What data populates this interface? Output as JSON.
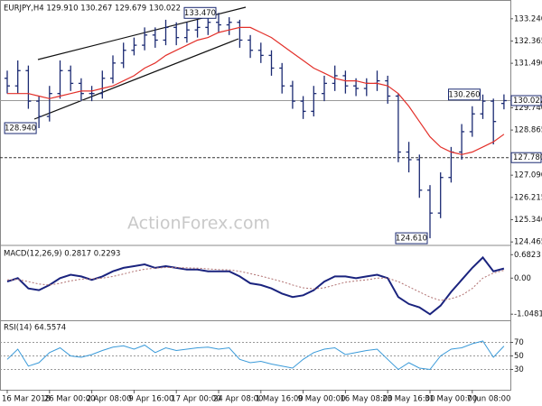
{
  "chart_data": [
    {
      "type": "ohlc",
      "title": "EURJPY,H4  129.910 130.267 129.679 130.022",
      "watermark": "ActionForex.com",
      "color": "#1b2a72",
      "categories": [
        "16 Mar 2018",
        null,
        null,
        null,
        "26 Mar 00:00",
        null,
        null,
        null,
        "2 Apr 08:00",
        null,
        null,
        null,
        "9 Apr 16:00",
        null,
        null,
        null,
        "17 Apr 00:00",
        null,
        null,
        null,
        "24 Apr 08:00",
        null,
        null,
        null,
        "1 May 16:00",
        null,
        null,
        null,
        "9 May 00:00",
        null,
        null,
        null,
        "16 May 08:00",
        null,
        null,
        null,
        "23 May 16:00",
        null,
        null,
        null,
        "31 May 00:00",
        null,
        null,
        null,
        "7 Jun 08:00",
        null,
        null,
        null
      ],
      "open": [
        130.9,
        130.6,
        131.2,
        130.0,
        129.4,
        130.3,
        131.2,
        130.7,
        130.3,
        130.3,
        130.9,
        131.5,
        132.0,
        132.2,
        132.6,
        132.4,
        132.9,
        132.5,
        132.8,
        132.9,
        133.1,
        133.0,
        133.1,
        132.4,
        132.0,
        131.8,
        131.3,
        130.6,
        130.0,
        129.6,
        130.3,
        130.7,
        131.0,
        130.6,
        130.5,
        130.7,
        130.8,
        130.2,
        128.0,
        127.7,
        126.5,
        125.6,
        127.0,
        128.0,
        128.8,
        129.5,
        130.0,
        129.91
      ],
      "high": [
        131.2,
        131.6,
        131.4,
        130.2,
        130.6,
        131.6,
        131.4,
        130.9,
        130.6,
        131.2,
        131.8,
        132.3,
        132.5,
        132.9,
        132.9,
        133.2,
        133.1,
        133.1,
        133.2,
        133.3,
        133.47,
        133.3,
        133.2,
        132.6,
        132.3,
        132.0,
        131.5,
        130.8,
        130.2,
        130.6,
        131.0,
        131.4,
        131.2,
        130.9,
        130.9,
        131.2,
        131.0,
        130.3,
        128.4,
        127.9,
        126.7,
        127.2,
        128.2,
        129.1,
        129.8,
        130.26,
        130.1,
        130.267
      ],
      "low": [
        130.3,
        130.3,
        129.7,
        128.94,
        129.2,
        130.1,
        130.4,
        130.0,
        130.0,
        130.1,
        130.7,
        131.3,
        131.8,
        132.0,
        132.1,
        132.2,
        132.2,
        132.3,
        132.5,
        132.6,
        132.7,
        132.6,
        132.1,
        131.7,
        131.5,
        131.0,
        130.3,
        129.7,
        129.3,
        129.4,
        130.0,
        130.4,
        130.3,
        130.2,
        130.2,
        130.4,
        129.9,
        127.6,
        127.2,
        126.2,
        124.61,
        125.4,
        126.8,
        127.7,
        128.6,
        129.3,
        128.3,
        129.679
      ],
      "close": [
        130.6,
        131.2,
        130.0,
        129.4,
        130.3,
        131.2,
        130.7,
        130.3,
        130.3,
        130.9,
        131.5,
        132.0,
        132.2,
        132.6,
        132.4,
        132.9,
        132.5,
        132.8,
        132.9,
        133.1,
        133.0,
        133.1,
        132.4,
        132.0,
        131.8,
        131.3,
        130.6,
        130.0,
        129.6,
        130.3,
        130.7,
        131.0,
        130.6,
        130.5,
        130.7,
        130.8,
        130.2,
        128.0,
        127.7,
        126.5,
        125.6,
        127.0,
        128.0,
        128.8,
        129.5,
        130.0,
        129.2,
        130.022
      ],
      "ma_color": "#e3302a",
      "ma_values": [
        130.3,
        130.3,
        130.3,
        130.2,
        130.1,
        130.2,
        130.3,
        130.4,
        130.4,
        130.5,
        130.6,
        130.8,
        131.0,
        131.3,
        131.5,
        131.8,
        132.0,
        132.2,
        132.4,
        132.5,
        132.7,
        132.8,
        132.9,
        132.9,
        132.7,
        132.5,
        132.2,
        131.9,
        131.6,
        131.3,
        131.1,
        130.9,
        130.8,
        130.8,
        130.7,
        130.7,
        130.6,
        130.3,
        129.8,
        129.2,
        128.6,
        128.2,
        128.0,
        127.9,
        128.0,
        128.2,
        128.4,
        128.7
      ],
      "ylim": [
        124.4,
        133.8
      ],
      "yticks": [
        {
          "value": 133.24,
          "label": "133.240"
        },
        {
          "value": 132.365,
          "label": "132.365"
        },
        {
          "value": 131.49,
          "label": "131.490"
        },
        {
          "value": 129.74,
          "label": "129.740"
        },
        {
          "value": 128.865,
          "label": "128.865"
        },
        {
          "value": 127.09,
          "label": "127.090"
        },
        {
          "value": 126.215,
          "label": "126.215"
        },
        {
          "value": 125.34,
          "label": "125.340"
        },
        {
          "value": 124.465,
          "label": "124.465"
        }
      ],
      "price_line": {
        "value": 130.022,
        "label": "130.022"
      },
      "level_line": {
        "value": 127.78,
        "label": "127.780"
      },
      "annotations": [
        {
          "value": 133.47,
          "label": "133.470"
        },
        {
          "value": 128.94,
          "label": "128.940"
        },
        {
          "value": 130.26,
          "label": "130.260"
        },
        {
          "value": 124.61,
          "label": "124.610"
        }
      ]
    },
    {
      "type": "line",
      "title": "MACD(12,26,9) 0.2817 0.2293",
      "series": [
        {
          "color": "#1a237e",
          "values": [
            -0.1,
            0.0,
            -0.3,
            -0.35,
            -0.2,
            0.0,
            0.1,
            0.05,
            -0.05,
            0.05,
            0.2,
            0.3,
            0.35,
            0.4,
            0.3,
            0.35,
            0.3,
            0.25,
            0.25,
            0.2,
            0.2,
            0.2,
            0.05,
            -0.15,
            -0.2,
            -0.3,
            -0.45,
            -0.55,
            -0.5,
            -0.35,
            -0.1,
            0.05,
            0.05,
            0.0,
            0.05,
            0.1,
            0.0,
            -0.55,
            -0.75,
            -0.85,
            -1.05,
            -0.8,
            -0.4,
            -0.05,
            0.3,
            0.6,
            0.2,
            0.2817
          ]
        },
        {
          "color": "#b07070",
          "values": [
            -0.05,
            -0.04,
            -0.1,
            -0.17,
            -0.2,
            -0.15,
            -0.08,
            -0.03,
            -0.02,
            0.0,
            0.05,
            0.12,
            0.2,
            0.26,
            0.29,
            0.31,
            0.31,
            0.3,
            0.29,
            0.27,
            0.25,
            0.24,
            0.2,
            0.13,
            0.06,
            -0.02,
            -0.1,
            -0.2,
            -0.28,
            -0.31,
            -0.28,
            -0.2,
            -0.12,
            -0.08,
            -0.05,
            0.0,
            0.0,
            -0.1,
            -0.25,
            -0.4,
            -0.55,
            -0.65,
            -0.6,
            -0.5,
            -0.3,
            0.0,
            0.15,
            0.2293
          ]
        }
      ],
      "ylim": [
        -1.2,
        0.9
      ],
      "yticks": [
        0.6823,
        {
          "value": 0,
          "label": "0.00"
        },
        -1.0481
      ]
    },
    {
      "type": "line",
      "title": "RSI(14) 64.5574",
      "series": [
        {
          "color": "#3a9ad9",
          "values": [
            45,
            60,
            35,
            40,
            55,
            62,
            50,
            48,
            52,
            58,
            63,
            65,
            60,
            66,
            55,
            62,
            58,
            60,
            62,
            63,
            60,
            62,
            45,
            40,
            42,
            38,
            35,
            32,
            45,
            55,
            60,
            62,
            52,
            55,
            58,
            60,
            45,
            30,
            40,
            32,
            30,
            50,
            60,
            62,
            68,
            72,
            48,
            64.5574
          ]
        }
      ],
      "ylim": [
        0,
        100
      ],
      "yticks": [
        70,
        50,
        30
      ]
    }
  ]
}
